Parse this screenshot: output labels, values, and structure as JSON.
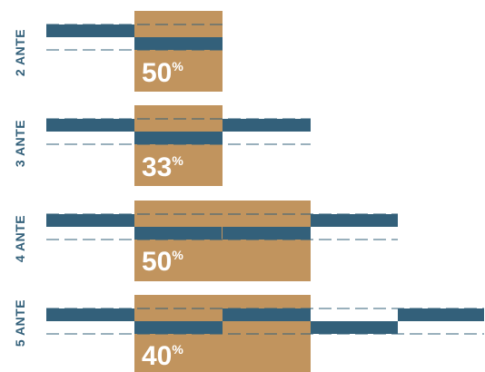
{
  "colors": {
    "panel": "#33607a",
    "open_area": "#c1945e",
    "label": "#33607a",
    "percent_text": "#ffffff",
    "track_line": "#33607a"
  },
  "rows": [
    {
      "label": "2 ANTE",
      "panels": 2,
      "open_panels": [
        1
      ],
      "percent": "50",
      "percent_sign": "%"
    },
    {
      "label": "3 ANTE",
      "panels": 3,
      "open_panels": [
        1
      ],
      "percent": "33",
      "percent_sign": "%"
    },
    {
      "label": "4 ANTE",
      "panels": 4,
      "open_panels": [
        1,
        2
      ],
      "percent": "50",
      "percent_sign": "%"
    },
    {
      "label": "5 ANTE",
      "panels": 5,
      "open_panels": [
        1,
        2
      ],
      "percent": "40",
      "percent_sign": "%"
    }
  ]
}
